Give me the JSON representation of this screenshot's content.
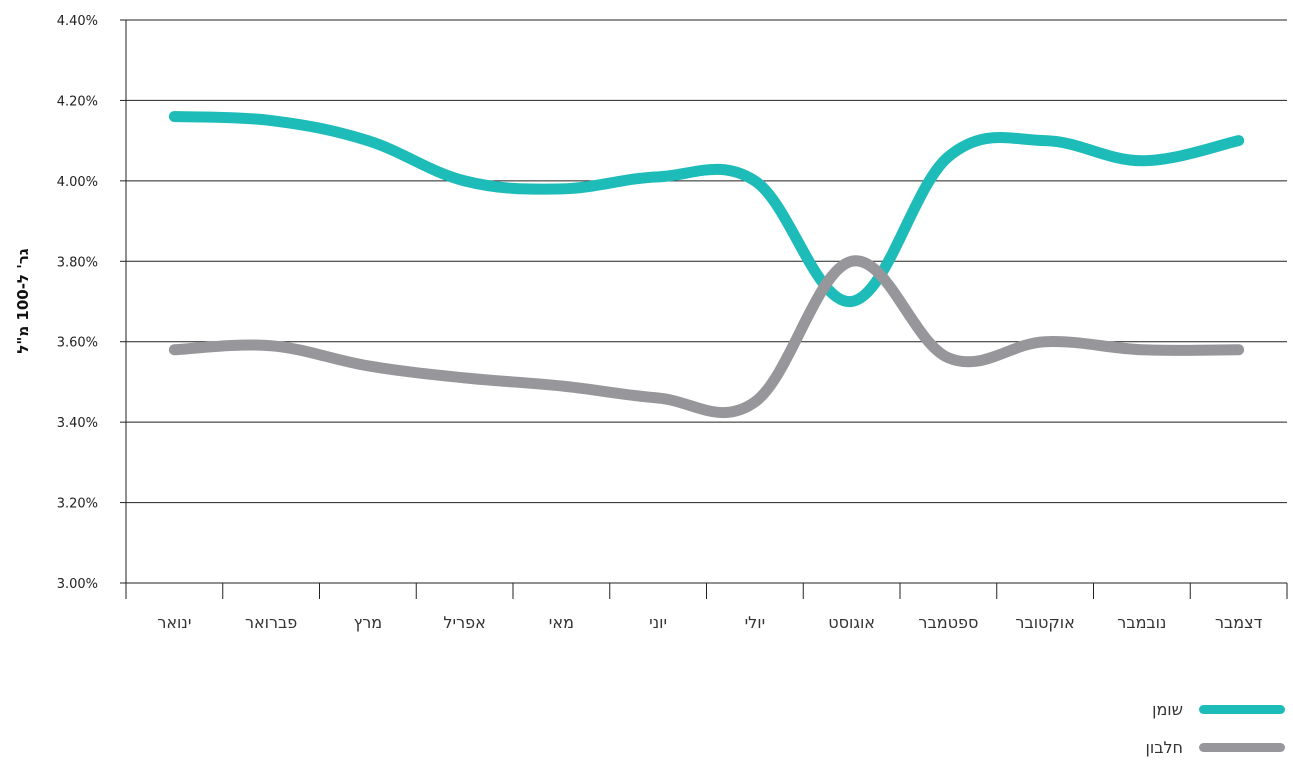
{
  "chart_data": {
    "type": "line",
    "categories": [
      "ינואר",
      "פברואר",
      "מרץ",
      "אפריל",
      "מאי",
      "יוני",
      "יולי",
      "אוגוסט",
      "ספטמבר",
      "אוקטובר",
      "נובמבר",
      "דצמבר"
    ],
    "series": [
      {
        "name": "שומן",
        "color": "#1dbcb9",
        "values": [
          4.16,
          4.15,
          4.1,
          4.0,
          3.98,
          4.01,
          4.0,
          3.7,
          4.06,
          4.1,
          4.05,
          4.1
        ]
      },
      {
        "name": "חלבון",
        "color": "#97979b",
        "values": [
          3.58,
          3.59,
          3.54,
          3.51,
          3.49,
          3.46,
          3.45,
          3.8,
          3.56,
          3.6,
          3.58,
          3.58
        ]
      }
    ],
    "ylim": [
      3.0,
      4.4
    ],
    "yticks": [
      "3.00%",
      "3.20%",
      "3.40%",
      "3.60%",
      "3.80%",
      "4.00%",
      "4.20%",
      "4.40%"
    ],
    "ylabel": "גר' ל-100 מ\"ל",
    "xlabel": "",
    "grid": true,
    "legend_position": "bottom-right",
    "category_order": "right-to-left"
  }
}
